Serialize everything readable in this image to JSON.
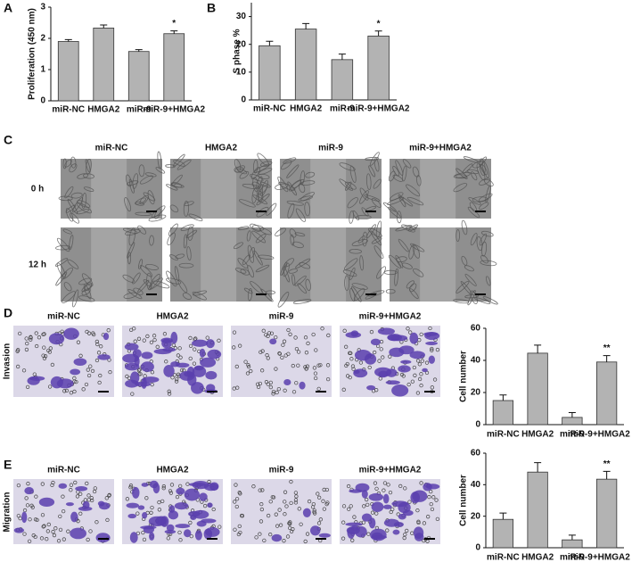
{
  "chart_data": [
    {
      "type": "bar",
      "panel": "A",
      "ylabel": "Proliferation (450 nm)",
      "categories": [
        "miR-NC",
        "HMGA2",
        "miR-9",
        "miR-9+HMGA2"
      ],
      "values": [
        1.9,
        2.33,
        1.58,
        2.15
      ],
      "errors": [
        0.06,
        0.1,
        0.06,
        0.09
      ],
      "significance": [
        null,
        null,
        null,
        "*"
      ],
      "ylim": [
        0,
        3
      ],
      "yticks": [
        0,
        1,
        2,
        3
      ],
      "color": "#b3b3b3"
    },
    {
      "type": "bar",
      "panel": "B",
      "ylabel": "S phase %",
      "categories": [
        "miR-NC",
        "HMGA2",
        "miR-9",
        "miR-9+HMGA2"
      ],
      "values": [
        19.5,
        25.5,
        14.5,
        23
      ],
      "errors": [
        1.6,
        2,
        2,
        1.8
      ],
      "significance": [
        null,
        null,
        null,
        "*"
      ],
      "ylim": [
        0,
        35
      ],
      "yticks": [
        0,
        10,
        20,
        30
      ],
      "color": "#b3b3b3"
    },
    {
      "type": "bar",
      "ylabel": "Cell number",
      "categories": [
        "miR-NC",
        "HMGA2",
        "miR-9",
        "miR-9+HMGA2"
      ],
      "values": [
        15,
        44.5,
        4.5,
        39
      ],
      "errors": [
        3.5,
        5,
        3,
        4
      ],
      "significance": [
        null,
        null,
        null,
        "**"
      ],
      "ylim": [
        0,
        60
      ],
      "yticks": [
        0,
        20,
        40,
        60
      ],
      "color": "#b3b3b3"
    },
    {
      "type": "bar",
      "ylabel": "Cell number",
      "categories": [
        "miR-NC",
        "HMGA2",
        "miR-9",
        "miR-9+HMGA2"
      ],
      "values": [
        18,
        48,
        5,
        43.5
      ],
      "errors": [
        4,
        6,
        3,
        5
      ],
      "significance": [
        null,
        null,
        null,
        "**"
      ],
      "ylim": [
        0,
        60
      ],
      "yticks": [
        0,
        20,
        40,
        60
      ],
      "color": "#b3b3b3"
    }
  ],
  "wound_healing": {
    "panel": "C",
    "columns": [
      "miR-NC",
      "HMGA2",
      "miR-9",
      "miR-9+HMGA2"
    ],
    "rows": [
      "0 h",
      "12 h"
    ]
  },
  "invasion": {
    "panel": "D",
    "row_label": "Invasion",
    "columns": [
      "miR-NC",
      "HMGA2",
      "miR-9",
      "miR-9+HMGA2"
    ]
  },
  "migration": {
    "panel": "E",
    "row_label": "Migration",
    "columns": [
      "miR-NC",
      "HMGA2",
      "miR-9",
      "miR-9+HMGA2"
    ]
  }
}
